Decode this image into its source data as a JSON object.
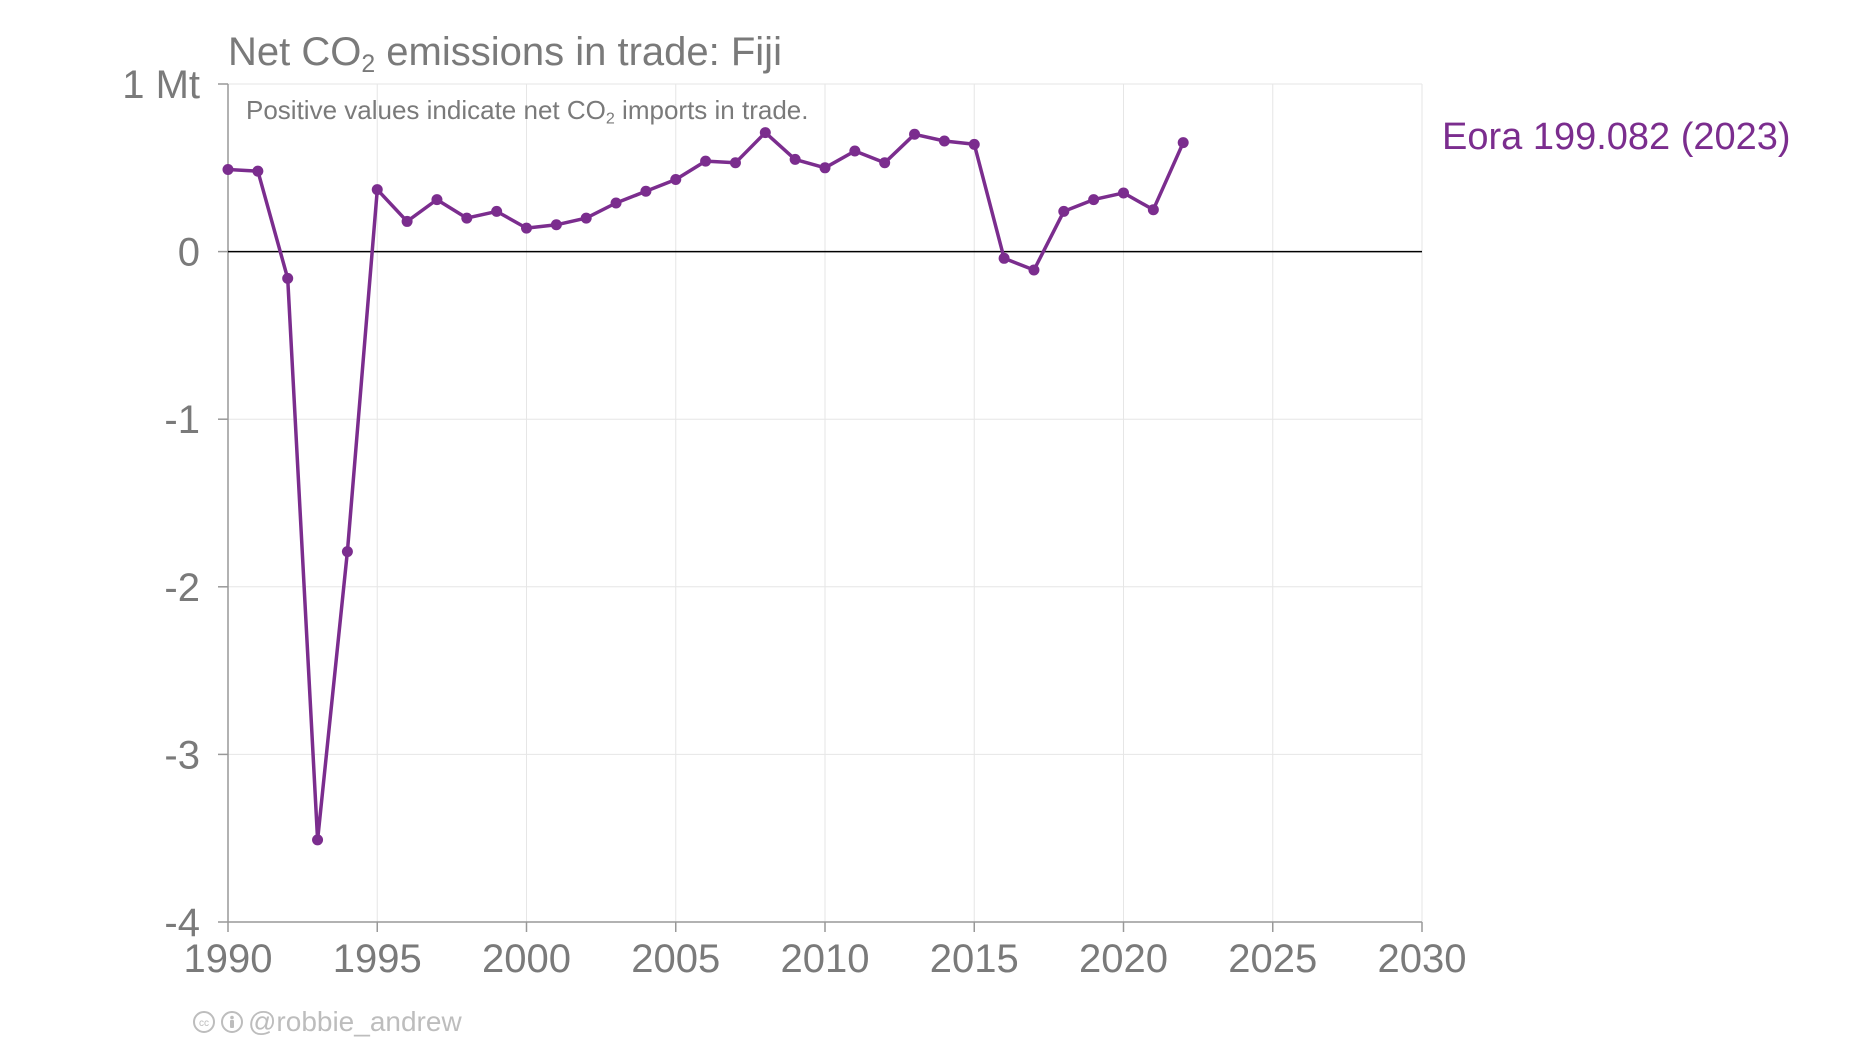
{
  "title": {
    "prefix": "Net CO",
    "subscript": "2",
    "suffix": " emissions in trade: Fiji"
  },
  "subtitle": {
    "prefix": "Positive values indicate net CO",
    "subscript": "2",
    "suffix": " imports in trade."
  },
  "credit": {
    "handle": "@robbie_andrew",
    "icons": [
      "creative-commons-icon",
      "attribution-icon"
    ]
  },
  "colors": {
    "series": "#7b2d8e",
    "axis_text": "#7a7a7a",
    "grid": "#e6e6e6",
    "zero_line": "#000000"
  },
  "chart_data": {
    "type": "line",
    "title": "Net CO2 emissions in trade: Fiji",
    "subtitle": "Positive values indicate net CO2 imports in trade.",
    "xlim": [
      1990,
      2030
    ],
    "ylim": [
      -4,
      1
    ],
    "x_ticks": [
      1990,
      1995,
      2000,
      2005,
      2010,
      2015,
      2020,
      2025,
      2030
    ],
    "y_ticks": [
      {
        "value": 1,
        "label": "1 Mt"
      },
      {
        "value": 0,
        "label": "0"
      },
      {
        "value": -1,
        "label": "-1"
      },
      {
        "value": -2,
        "label": "-2"
      },
      {
        "value": -3,
        "label": "-3"
      },
      {
        "value": -4,
        "label": "-4"
      }
    ],
    "grid": true,
    "legend": "direct label at right",
    "series": [
      {
        "name": "Eora 199.082 (2023)",
        "x": [
          1990,
          1991,
          1992,
          1993,
          1994,
          1995,
          1996,
          1997,
          1998,
          1999,
          2000,
          2001,
          2002,
          2003,
          2004,
          2005,
          2006,
          2007,
          2008,
          2009,
          2010,
          2011,
          2012,
          2013,
          2014,
          2015,
          2016,
          2017,
          2018,
          2019,
          2020,
          2021,
          2022
        ],
        "values": [
          0.49,
          0.48,
          -0.16,
          -3.51,
          -1.79,
          0.37,
          0.18,
          0.31,
          0.2,
          0.24,
          0.14,
          0.16,
          0.2,
          0.29,
          0.36,
          0.43,
          0.54,
          0.53,
          0.71,
          0.55,
          0.5,
          0.6,
          0.53,
          0.7,
          0.66,
          0.64,
          -0.04,
          -0.11,
          0.24,
          0.31,
          0.35,
          0.25,
          0.65
        ]
      }
    ]
  }
}
